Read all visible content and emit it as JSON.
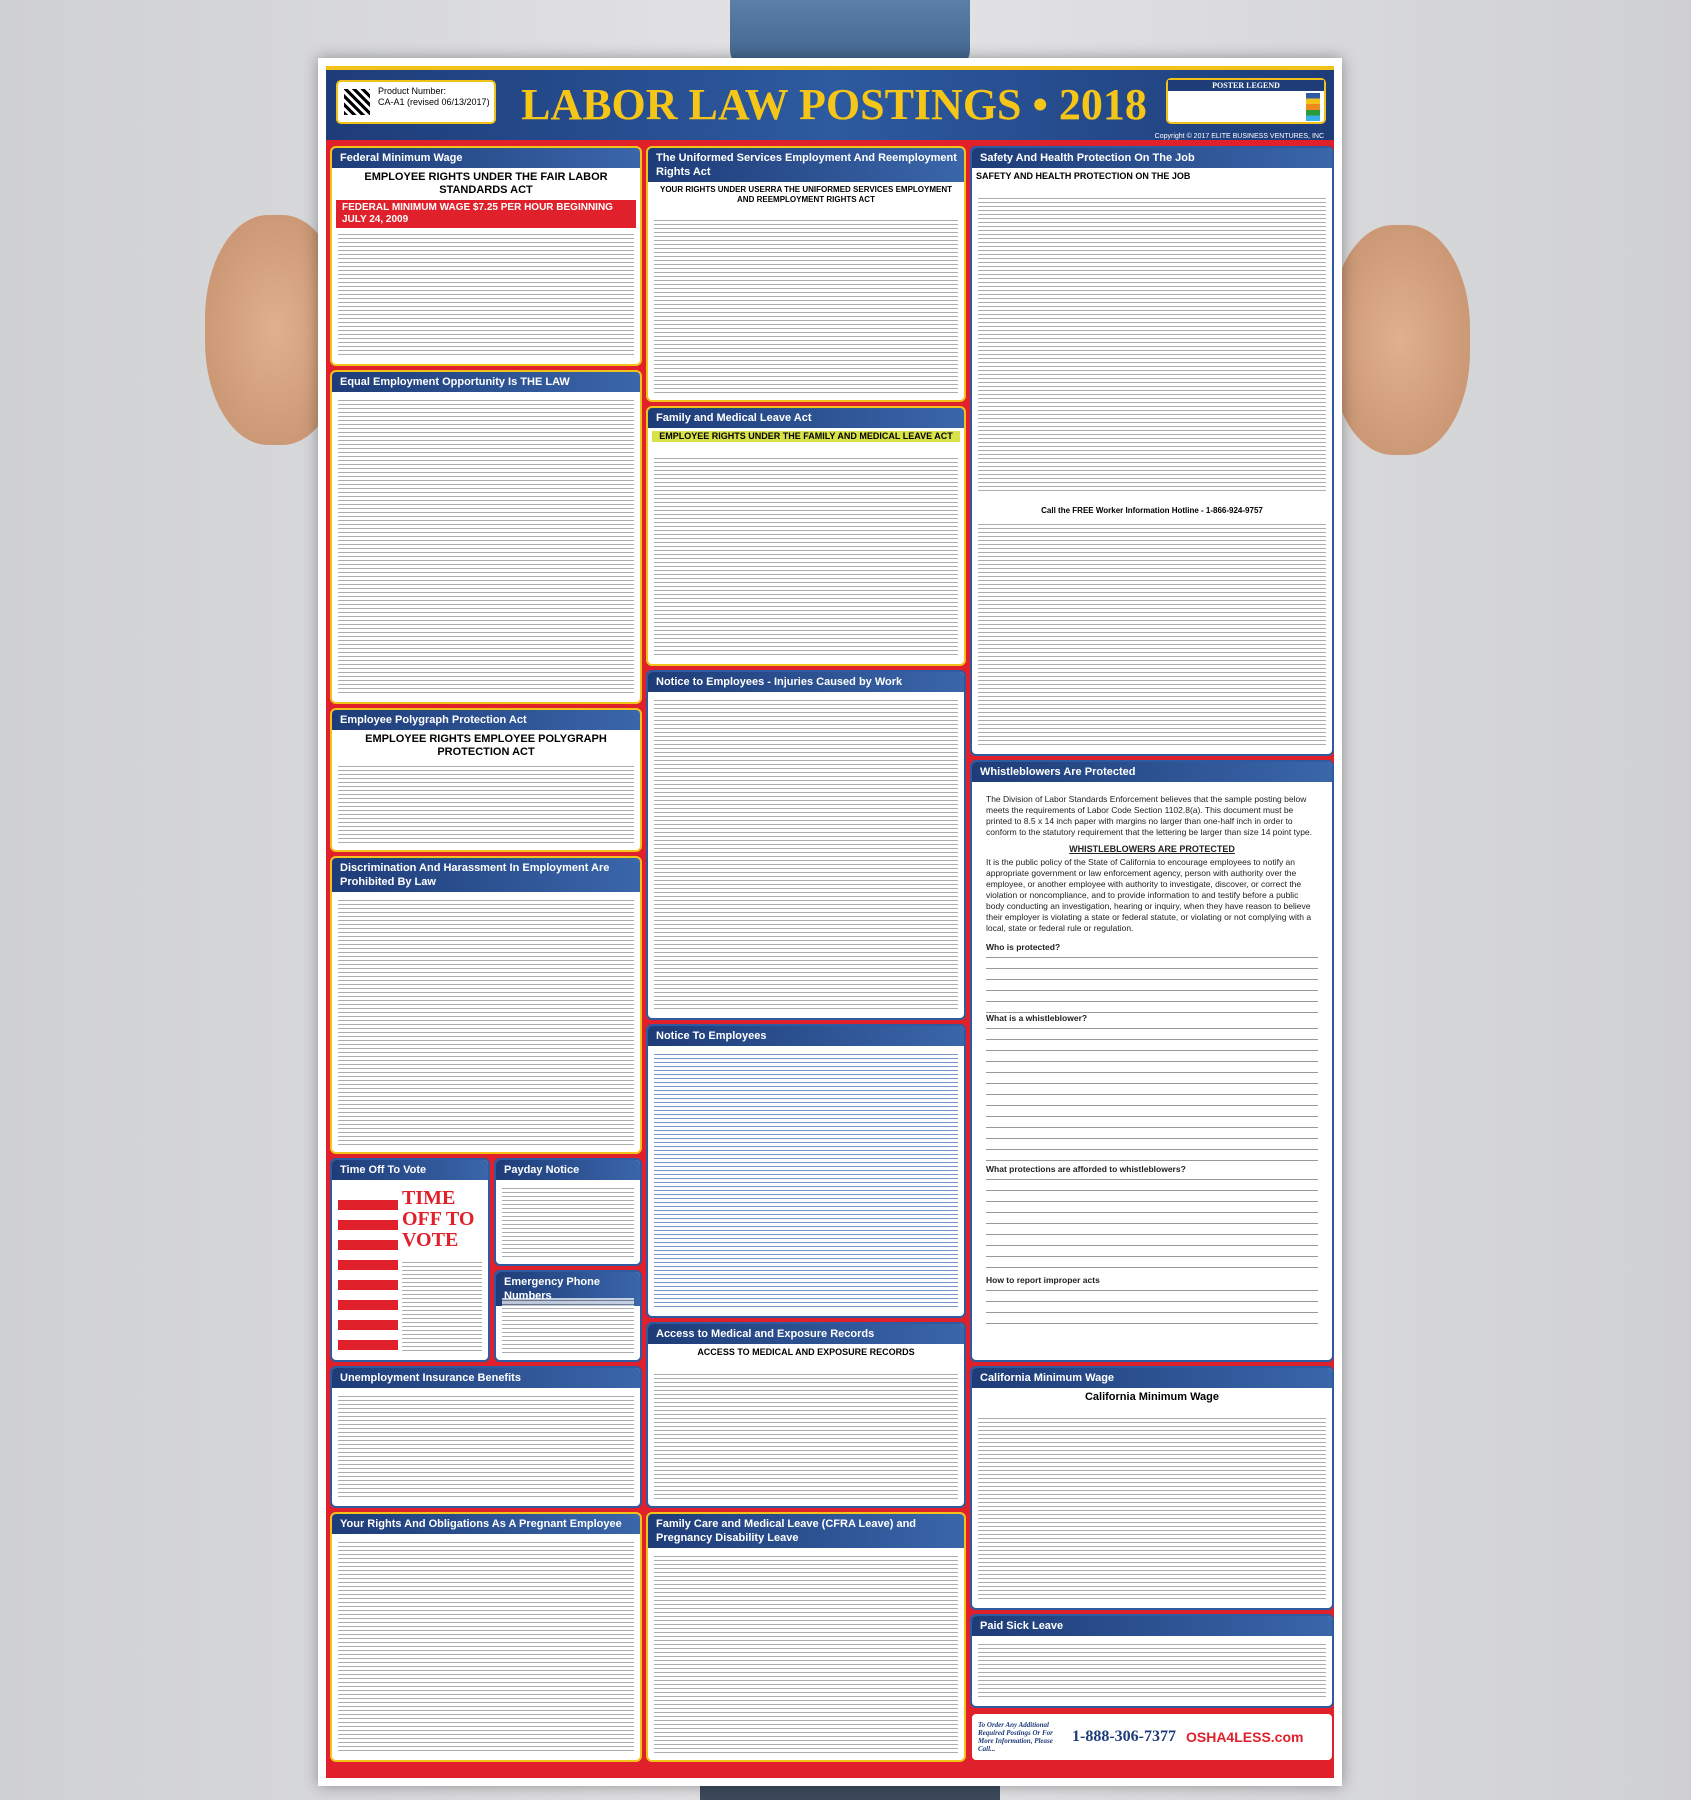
{
  "header": {
    "title": "LABOR LAW POSTINGS • 2018",
    "product_label": "Product Number:",
    "product_number": "CA-A1 (revised 06/13/2017)",
    "legend_title": "POSTER LEGEND",
    "copyright": "Copyright © 2017 ELITE BUSINESS VENTURES, INC"
  },
  "sections": {
    "federal_min_wage": {
      "title": "Federal Minimum Wage",
      "heading": "EMPLOYEE RIGHTS UNDER THE FAIR LABOR STANDARDS ACT",
      "bar": "FEDERAL MINIMUM WAGE  $7.25 PER HOUR  BEGINNING JULY 24, 2009"
    },
    "eeo": {
      "title": "Equal Employment Opportunity Is THE LAW"
    },
    "polygraph": {
      "title": "Employee Polygraph Protection Act",
      "heading": "EMPLOYEE RIGHTS EMPLOYEE POLYGRAPH PROTECTION ACT"
    },
    "discrimination": {
      "title": "Discrimination And Harassment In Employment Are Prohibited By Law"
    },
    "time_off_vote": {
      "title": "Time Off To Vote",
      "heading": "TIME OFF TO VOTE"
    },
    "payday": {
      "title": "Payday Notice"
    },
    "emergency": {
      "title": "Emergency Phone Numbers"
    },
    "unemployment": {
      "title": "Unemployment Insurance Benefits"
    },
    "pregnant": {
      "title": "Your Rights And Obligations As A Pregnant Employee"
    },
    "userra": {
      "title": "The Uniformed Services Employment And Reemployment Rights Act",
      "heading": "YOUR RIGHTS UNDER USERRA THE UNIFORMED SERVICES EMPLOYMENT AND REEMPLOYMENT RIGHTS ACT"
    },
    "fmla": {
      "title": "Family and Medical Leave Act",
      "heading": "EMPLOYEE RIGHTS UNDER THE FAMILY AND MEDICAL LEAVE ACT"
    },
    "injuries": {
      "title": "Notice to Employees - Injuries Caused by Work"
    },
    "notice_employees": {
      "title": "Notice To Employees"
    },
    "medical_records": {
      "title": "Access to Medical and Exposure Records",
      "heading": "ACCESS TO MEDICAL AND EXPOSURE RECORDS"
    },
    "cfra": {
      "title": "Family Care and Medical Leave (CFRA Leave) and Pregnancy Disability Leave"
    },
    "safety": {
      "title": "Safety And Health Protection On The Job",
      "heading": "SAFETY AND HEALTH PROTECTION ON THE JOB",
      "hotline": "Call the FREE Worker Information Hotline - 1-866-924-9757"
    },
    "whistleblowers": {
      "title": "Whistleblowers Are Protected",
      "intro": "The Division of Labor Standards Enforcement believes that the sample posting below meets the requirements of Labor Code Section 1102.8(a). This document must be printed to 8.5 x 14 inch paper with margins no larger than one-half inch in order to conform to the statutory requirement that the lettering be larger than size 14 point type.",
      "heading": "WHISTLEBLOWERS ARE PROTECTED",
      "para": "It is the public policy of the State of California to encourage employees to notify an appropriate government or law enforcement agency, person with authority over the employee, or another employee with authority to investigate, discover, or correct the violation or noncompliance, and to provide information to and testify before a public body conducting an investigation, hearing or inquiry, when they have reason to believe their employer is violating a state or federal statute, or violating or not complying with a local, state or federal rule or regulation.",
      "q1": "Who is protected?",
      "q2": "What is a whistleblower?",
      "q3": "What protections are afforded to whistleblowers?",
      "q4": "How to report improper acts"
    },
    "ca_min_wage": {
      "title": "California Minimum Wage",
      "heading": "California Minimum Wage"
    },
    "paid_sick": {
      "title": "Paid Sick Leave"
    }
  },
  "footer": {
    "order_text": "To Order Any Additional Required Postings Or For More Information, Please Call...",
    "phone": "1-888-306-7377",
    "brand": "OSHA4LESS.com"
  }
}
